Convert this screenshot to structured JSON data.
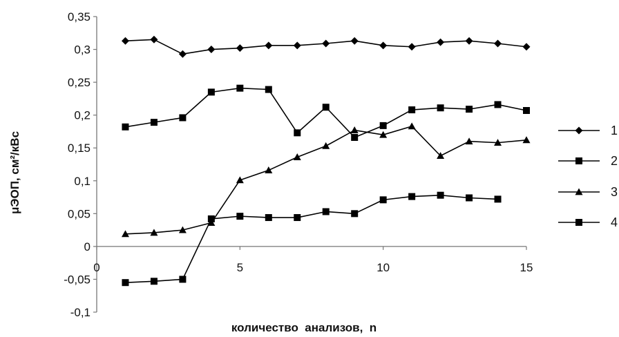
{
  "chart_data": {
    "type": "line",
    "title": "",
    "xlabel": "количество  анализов,  n",
    "ylabel": "μЭОП, см²/кВс",
    "xlim": [
      0,
      15
    ],
    "ylim": [
      -0.1,
      0.35
    ],
    "x_ticks": [
      {
        "value": 0,
        "label": "0"
      },
      {
        "value": 5,
        "label": "5"
      },
      {
        "value": 10,
        "label": "10"
      },
      {
        "value": 15,
        "label": "15"
      }
    ],
    "y_ticks": [
      {
        "value": 0.35,
        "label": "0,35"
      },
      {
        "value": 0.3,
        "label": "0,3"
      },
      {
        "value": 0.25,
        "label": "0,25"
      },
      {
        "value": 0.2,
        "label": "0,2"
      },
      {
        "value": 0.15,
        "label": "0,15"
      },
      {
        "value": 0.1,
        "label": "0,1"
      },
      {
        "value": 0.05,
        "label": "0,05"
      },
      {
        "value": 0,
        "label": "0"
      },
      {
        "value": -0.05,
        "label": "-0,05"
      },
      {
        "value": -0.1,
        "label": "-0,1"
      }
    ],
    "grid": false,
    "legend_position": "right",
    "series": [
      {
        "name": "1",
        "marker": "diamond",
        "x": [
          1,
          2,
          3,
          4,
          5,
          6,
          7,
          8,
          9,
          10,
          11,
          12,
          13,
          14,
          15
        ],
        "y": [
          0.313,
          0.315,
          0.293,
          0.3,
          0.302,
          0.306,
          0.306,
          0.309,
          0.313,
          0.306,
          0.304,
          0.311,
          0.313,
          0.309,
          0.304
        ]
      },
      {
        "name": "2",
        "marker": "square",
        "x": [
          1,
          2,
          3,
          4,
          5,
          6,
          7,
          8,
          9,
          10,
          11,
          12,
          13,
          14,
          15
        ],
        "y": [
          0.182,
          0.189,
          0.196,
          0.235,
          0.241,
          0.239,
          0.173,
          0.212,
          0.166,
          0.184,
          0.208,
          0.211,
          0.209,
          0.216,
          0.207
        ]
      },
      {
        "name": "3",
        "marker": "triangle",
        "x": [
          1,
          2,
          3,
          4,
          5,
          6,
          7,
          8,
          9,
          10,
          11,
          12,
          13,
          14,
          15
        ],
        "y": [
          0.019,
          0.021,
          0.025,
          0.036,
          0.101,
          0.116,
          0.136,
          0.153,
          0.177,
          0.17,
          0.183,
          0.138,
          0.16,
          0.158,
          0.162
        ]
      },
      {
        "name": "4",
        "marker": "square",
        "x": [
          1,
          2,
          3,
          4,
          5,
          6,
          7,
          8,
          9,
          10,
          11,
          12,
          13,
          14
        ],
        "y": [
          -0.055,
          -0.053,
          -0.05,
          0.042,
          0.046,
          0.044,
          0.044,
          0.053,
          0.05,
          0.071,
          0.076,
          0.078,
          0.074,
          0.072
        ]
      }
    ]
  }
}
